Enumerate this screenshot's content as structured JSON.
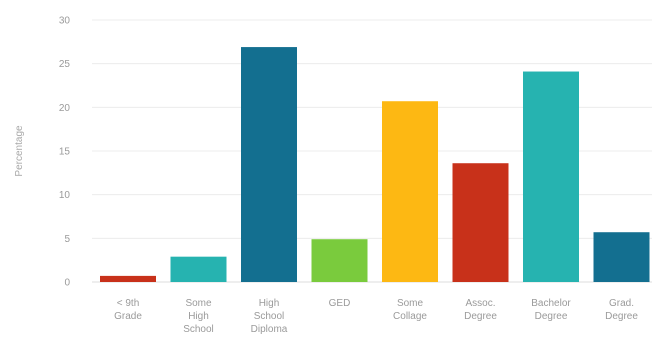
{
  "chart_data": {
    "type": "bar",
    "ylabel": "Percentage",
    "xlabel": "",
    "ylim": [
      0,
      30
    ],
    "yticks": [
      0,
      5,
      10,
      15,
      20,
      25,
      30
    ],
    "grid": true,
    "categories": [
      [
        "< 9th",
        "Grade"
      ],
      [
        "Some",
        "High",
        "School"
      ],
      [
        "High",
        "School",
        "Diploma"
      ],
      [
        "GED"
      ],
      [
        "Some",
        "Collage"
      ],
      [
        "Assoc.",
        "Degree"
      ],
      [
        "Bachelor",
        "Degree"
      ],
      [
        "Grad.",
        "Degree"
      ]
    ],
    "values": [
      0.7,
      2.9,
      26.9,
      4.9,
      20.7,
      13.6,
      24.1,
      5.7
    ],
    "colors": [
      "#c8311a",
      "#26b3b0",
      "#136f90",
      "#7acb3d",
      "#fdb813",
      "#c8311a",
      "#26b3b0",
      "#136f90"
    ]
  }
}
